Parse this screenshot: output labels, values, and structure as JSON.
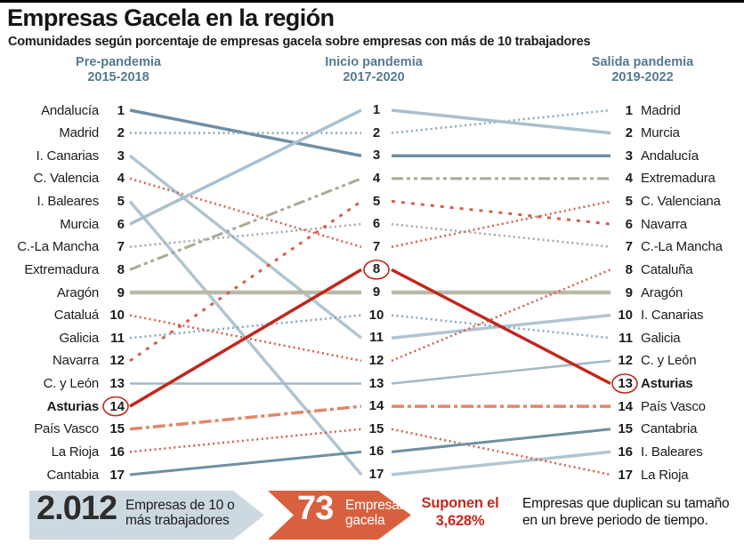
{
  "header": {
    "title": "Empresas Gacela en la región",
    "subtitle": "Comunidades según porcentaje de empresas gacela sobre empresas con más de 10 trabajadores"
  },
  "columns": [
    {
      "label": "Pre-pandemia",
      "years": "2015-2018"
    },
    {
      "label": "Inicio pandemia",
      "years": "2017-2020"
    },
    {
      "label": "Salida pandemia",
      "years": "2019-2022"
    }
  ],
  "chart_data": {
    "type": "line",
    "subtype": "bump-ranking",
    "x": [
      "Pre-pandemia 2015-2018",
      "Inicio pandemia 2017-2020",
      "Salida pandemia 2019-2022"
    ],
    "y_axis": "rank 1 (top) to 17 (bottom)",
    "series": [
      {
        "name": "Andalucía",
        "left_label": "Andalucía",
        "right_label": "Andalucía",
        "ranks": [
          1,
          3,
          3
        ],
        "color": "#6f8fa2",
        "width": 3.5,
        "dash": null
      },
      {
        "name": "Madrid",
        "left_label": "Madrid",
        "right_label": "Madrid",
        "ranks": [
          2,
          2,
          1
        ],
        "color": "#8aa6b8",
        "width": 2.5,
        "dash": [
          2,
          3.5
        ]
      },
      {
        "name": "I. Canarias",
        "left_label": "I. Canarias",
        "right_label": "I. Canarias",
        "ranks": [
          3,
          11,
          10
        ],
        "color": "#b0c5d2",
        "width": 3.5,
        "dash": null
      },
      {
        "name": "C. Valenciana",
        "left_label": "C. Valencia",
        "right_label": "C. Valenciana",
        "ranks": [
          4,
          7,
          5
        ],
        "color": "#d2604b",
        "width": 2.5,
        "dash": [
          2,
          3.5
        ]
      },
      {
        "name": "I. Baleares",
        "left_label": "I. Baleares",
        "right_label": "I. Baleares",
        "ranks": [
          5,
          17,
          16
        ],
        "color": "#b0c5d2",
        "width": 3.5,
        "dash": null
      },
      {
        "name": "Murcia",
        "left_label": "Murcia",
        "right_label": "Murcia",
        "ranks": [
          6,
          1,
          2
        ],
        "color": "#a9c0ce",
        "width": 3.5,
        "dash": null
      },
      {
        "name": "C.-La Mancha",
        "left_label": "C.-La Mancha",
        "right_label": "C.-La Mancha",
        "ranks": [
          7,
          6,
          7
        ],
        "color": "#9fa8ab",
        "width": 2.5,
        "dash": [
          2,
          3.5
        ]
      },
      {
        "name": "Extremadura",
        "left_label": "Extremadura",
        "right_label": "Extremadura",
        "ranks": [
          8,
          4,
          4
        ],
        "color": "#a9a996",
        "width": 3,
        "dash": [
          13,
          4,
          4,
          4,
          4,
          4
        ]
      },
      {
        "name": "Aragón",
        "left_label": "Aragón",
        "right_label": "Aragón",
        "ranks": [
          9,
          9,
          9
        ],
        "color": "#b9b9a7",
        "width": 4.5,
        "dash": null
      },
      {
        "name": "Cataluña",
        "left_label": "Cataluá",
        "right_label": "Cataluña",
        "ranks": [
          10,
          12,
          8
        ],
        "color": "#d2604b",
        "width": 2.5,
        "dash": [
          2,
          3.5
        ]
      },
      {
        "name": "Galicia",
        "left_label": "Galicia",
        "right_label": "Galicia",
        "ranks": [
          11,
          10,
          11
        ],
        "color": "#8aa6b8",
        "width": 2.5,
        "dash": [
          2,
          3.5
        ]
      },
      {
        "name": "Navarra",
        "left_label": "Navarra",
        "right_label": "Navarra",
        "ranks": [
          12,
          5,
          6
        ],
        "color": "#d2604b",
        "width": 3,
        "dash": [
          4,
          7
        ]
      },
      {
        "name": "C. y León",
        "left_label": "C. y León",
        "right_label": "C. y León",
        "ranks": [
          13,
          13,
          12
        ],
        "color": "#a2b8c5",
        "width": 2.5,
        "dash": null
      },
      {
        "name": "Asturias",
        "left_label": "Asturias",
        "right_label": "Asturias",
        "ranks": [
          14,
          8,
          13
        ],
        "color": "#c1271c",
        "width": 3.5,
        "dash": null,
        "bold": true
      },
      {
        "name": "País Vasco",
        "left_label": "País Vasco",
        "right_label": "País Vasco",
        "ranks": [
          15,
          14,
          14
        ],
        "color": "#e0876b",
        "width": 3.5,
        "dash": [
          14,
          4,
          4,
          4
        ]
      },
      {
        "name": "La Rioja",
        "left_label": "La Rioja",
        "right_label": "La Rioja",
        "ranks": [
          16,
          15,
          17
        ],
        "color": "#d2604b",
        "width": 2.5,
        "dash": [
          2,
          3.5
        ]
      },
      {
        "name": "Cantabria",
        "left_label": "Cantabia",
        "right_label": "Cantabria",
        "ranks": [
          17,
          16,
          15
        ],
        "color": "#6f8fa2",
        "width": 3,
        "dash": null
      }
    ],
    "highlight": {
      "name": "Asturias",
      "circle_color": "#c1271c",
      "circled_points": [
        {
          "column": 0,
          "rank": 14
        },
        {
          "column": 1,
          "rank": 8
        },
        {
          "column": 2,
          "rank": 13
        }
      ]
    }
  },
  "footer": {
    "total_value": "2.012",
    "total_label1": "Empresas de 10 o",
    "total_label2": "más trabajadores",
    "gazelle_value": "73",
    "gazelle_label1": "Empresas",
    "gazelle_label2": "gacela",
    "share_label1": "Suponen el",
    "share_label2": "3,628%",
    "note1": "Empresas que duplican su tamaño",
    "note2": "en un breve periodo de tiempo."
  }
}
